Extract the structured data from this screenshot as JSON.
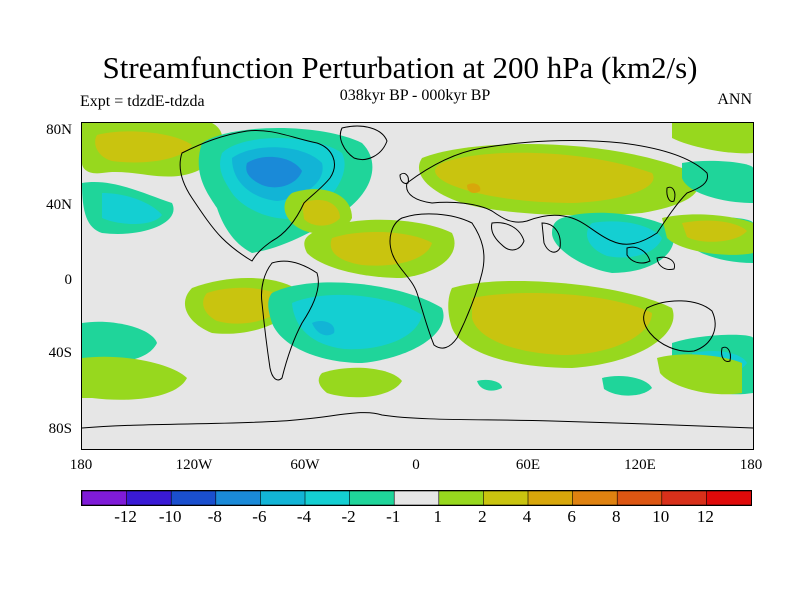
{
  "title": "Streamfunction Perturbation at 200 hPa (km2/s)",
  "subtitle": "038kyr BP - 000kyr BP",
  "experiment": "Expt = tdzdE-tdzda",
  "season": "ANN",
  "lat_labels": [
    "80N",
    "40N",
    "0",
    "40S",
    "80S"
  ],
  "lon_labels": [
    "180",
    "120W",
    "60W",
    "0",
    "60E",
    "120E",
    "180"
  ],
  "colorbar": {
    "labels": [
      "-12",
      "-10",
      "-8",
      "-6",
      "-4",
      "-2",
      "-1",
      "1",
      "2",
      "4",
      "6",
      "8",
      "10",
      "12"
    ],
    "colors": [
      "#7f1bd8",
      "#3a1ad6",
      "#1a4fce",
      "#1a8ad8",
      "#12b4d6",
      "#14cfd2",
      "#1fd59a",
      "#e6e6e6",
      "#97d81e",
      "#c9c40f",
      "#d8a70b",
      "#df8210",
      "#dd5612",
      "#d8301a",
      "#e00a0a"
    ]
  },
  "colors": {
    "background": "#e6e6e6",
    "pos_light": "#97d81e",
    "pos_mid": "#c9c40f",
    "pos_strong": "#d8a70b",
    "neg_light": "#1fd59a",
    "neg_mid": "#14cfd2",
    "neg_strong": "#12b4d6",
    "neg_deep": "#1a8ad8"
  }
}
